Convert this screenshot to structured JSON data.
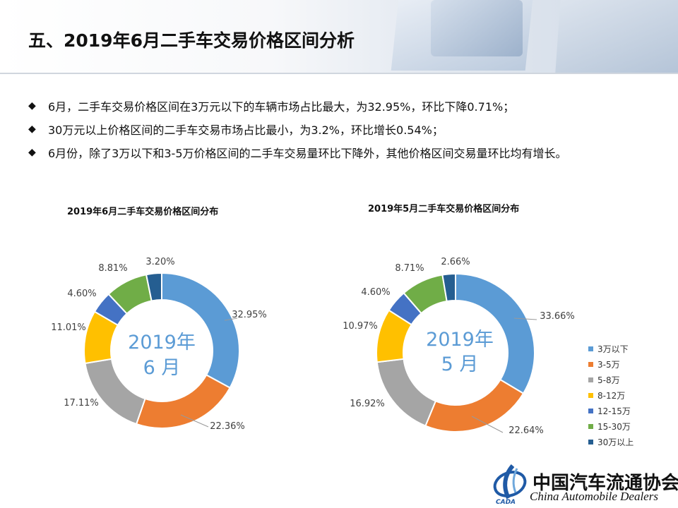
{
  "title": "五、2019年6月二手车交易价格区间分析",
  "bullets": [
    "6月，二手车交易价格区间在3万元以下的车辆市场占比最大，为32.95%，环比下降0.71%；",
    "30万元以上价格区间的二手车交易市场占比最小，为3.2%，环比增长0.54%；",
    "6月份，除了3万以下和3-5万价格区间的二手车交易量环比下降外，其他价格区间交易量环比均有增长。"
  ],
  "bullet_mark": "◆",
  "colors": [
    "#5b9bd5",
    "#ed7d31",
    "#a5a5a5",
    "#ffc000",
    "#4472c4",
    "#70ad47",
    "#255e91"
  ],
  "center_color": "#5b9bd5",
  "chart_data": [
    {
      "type": "pie",
      "title": "2019年6月二手车交易价格区间分布",
      "center_label": [
        "2019年",
        "6 月"
      ],
      "categories": [
        "3万以下",
        "3-5万",
        "5-8万",
        "8-12万",
        "12-15万",
        "15-30万",
        "30万以上"
      ],
      "values": [
        32.95,
        22.36,
        17.11,
        11.01,
        4.6,
        8.81,
        3.2
      ],
      "labels": [
        "32.95%",
        "22.36%",
        "17.11%",
        "11.01%",
        "4.60%",
        "8.81%",
        "3.20%"
      ]
    },
    {
      "type": "pie",
      "title": "2019年5月二手车交易价格区间分布",
      "center_label": [
        "2019年",
        "5 月"
      ],
      "categories": [
        "3万以下",
        "3-5万",
        "5-8万",
        "8-12万",
        "12-15万",
        "15-30万",
        "30万以上"
      ],
      "values": [
        33.66,
        22.64,
        16.92,
        10.97,
        4.6,
        8.71,
        2.66
      ],
      "labels": [
        "33.66%",
        "22.64%",
        "16.92%",
        "10.97%",
        "4.60%",
        "8.71%",
        "2.66%"
      ],
      "legend": "right"
    }
  ],
  "legend_items": [
    "3万以下",
    "3-5万",
    "5-8万",
    "8-12万",
    "12-15万",
    "15-30万",
    "30万以上"
  ],
  "logo": {
    "name_cn": "中国汽车流通协会",
    "name_en": "China Automobile Dealers",
    "mark_text": "CADA"
  }
}
